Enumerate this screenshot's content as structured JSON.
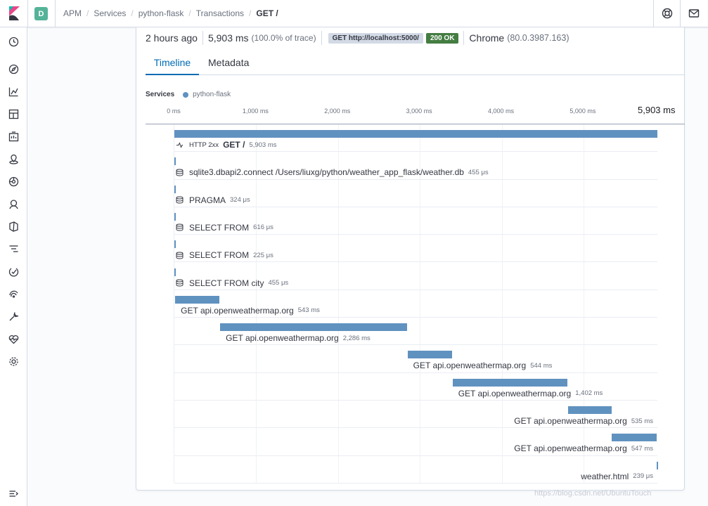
{
  "header": {
    "space_initial": "D",
    "breadcrumbs": [
      "APM",
      "Services",
      "python-flask",
      "Transactions",
      "GET /"
    ]
  },
  "summary": {
    "age": "2 hours ago",
    "duration": "5,903 ms",
    "duration_pct": "(100.0% of trace)",
    "request": "GET http://localhost:5000/",
    "status": "200 OK",
    "browser": "Chrome",
    "browser_version": "(80.0.3987.163)"
  },
  "tabs": [
    "Timeline",
    "Metadata"
  ],
  "services": {
    "label": "Services",
    "items": [
      "python-flask"
    ]
  },
  "axis": {
    "ticks": [
      "0 ms",
      "1,000 ms",
      "2,000 ms",
      "3,000 ms",
      "4,000 ms",
      "5,000 ms"
    ],
    "total": "5,903 ms",
    "max_ms": 5903
  },
  "waterfall": [
    {
      "kind": "transaction",
      "status": "HTTP 2xx",
      "name": "GET /",
      "duration": "5,903 ms",
      "start_ms": 0,
      "length_ms": 5903,
      "label_align": "start"
    },
    {
      "kind": "db",
      "name": "sqlite3.dbapi2.connect /Users/liuxg/python/weather_app_flask/weather.db",
      "duration": "455 μs",
      "start_ms": 0,
      "length_ms": 0.455,
      "label_align": "start"
    },
    {
      "kind": "db",
      "name": "PRAGMA",
      "duration": "324 μs",
      "start_ms": 1,
      "length_ms": 0.324,
      "label_align": "start"
    },
    {
      "kind": "db",
      "name": "SELECT FROM",
      "duration": "616 μs",
      "start_ms": 2,
      "length_ms": 0.616,
      "label_align": "start"
    },
    {
      "kind": "db",
      "name": "SELECT FROM",
      "duration": "225 μs",
      "start_ms": 3,
      "length_ms": 0.225,
      "label_align": "start"
    },
    {
      "kind": "db",
      "name": "SELECT FROM city",
      "duration": "455 μs",
      "start_ms": 4,
      "length_ms": 0.455,
      "label_align": "start"
    },
    {
      "kind": "http",
      "name": "GET api.openweathermap.org",
      "duration": "543 ms",
      "start_ms": 10,
      "length_ms": 543,
      "label_align": "start"
    },
    {
      "kind": "http",
      "name": "GET api.openweathermap.org",
      "duration": "2,286 ms",
      "start_ms": 560,
      "length_ms": 2286,
      "label_align": "start"
    },
    {
      "kind": "http",
      "name": "GET api.openweathermap.org",
      "duration": "544 ms",
      "start_ms": 2850,
      "length_ms": 544,
      "label_align": "start"
    },
    {
      "kind": "http",
      "name": "GET api.openweathermap.org",
      "duration": "1,402 ms",
      "start_ms": 3400,
      "length_ms": 1402,
      "label_align": "start"
    },
    {
      "kind": "http",
      "name": "GET api.openweathermap.org",
      "duration": "535 ms",
      "start_ms": 4810,
      "length_ms": 535,
      "label_align": "end"
    },
    {
      "kind": "http",
      "name": "GET api.openweathermap.org",
      "duration": "547 ms",
      "start_ms": 5345,
      "length_ms": 547,
      "label_align": "end"
    },
    {
      "kind": "template",
      "name": "weather.html",
      "duration": "239 μs",
      "start_ms": 5893,
      "length_ms": 0.239,
      "label_align": "end"
    }
  ],
  "watermark": "https://blog.csdn.net/UbuntuTouch"
}
